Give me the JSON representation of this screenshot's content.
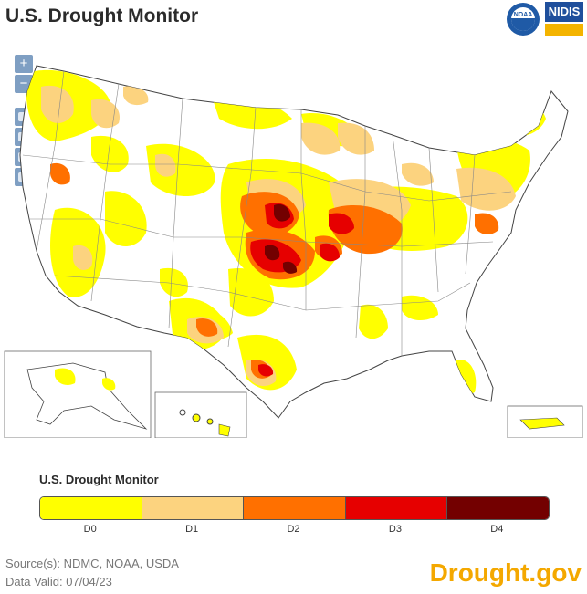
{
  "header": {
    "title": "U.S. Drought Monitor"
  },
  "logos": {
    "noaa": "NOAA",
    "nidis": "NIDIS"
  },
  "zoom": {
    "in_label": "+",
    "out_label": "−"
  },
  "legend": {
    "title": "U.S. Drought Monitor",
    "categories": [
      {
        "label": "D0",
        "color": "#ffff00"
      },
      {
        "label": "D1",
        "color": "#fcd37f"
      },
      {
        "label": "D2",
        "color": "#ff7000"
      },
      {
        "label": "D3",
        "color": "#e60000"
      },
      {
        "label": "D4",
        "color": "#730000"
      }
    ]
  },
  "footer": {
    "source": "Source(s): NDMC, NOAA, USDA",
    "valid": "Data Valid: 07/04/23",
    "brand": "Drought.gov"
  }
}
